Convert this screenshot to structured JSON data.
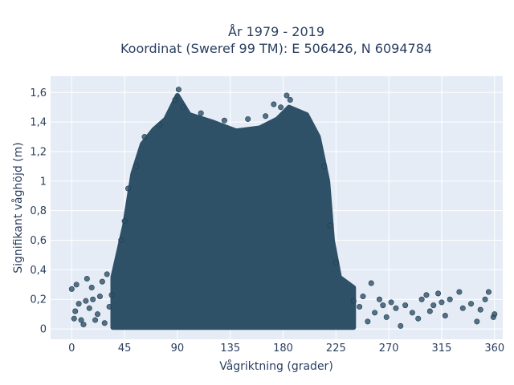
{
  "chart_data": {
    "type": "scatter",
    "title": "År 1979 - 2019",
    "subtitle": "Koordinat (Sweref 99 TM): E 506426, N 6094784",
    "xlabel": "Vågriktning (grader)",
    "ylabel": "Signifikant våghöjd (m)",
    "xlim": [
      -18,
      367
    ],
    "ylim": [
      -0.07,
      1.71
    ],
    "xticks": [
      0,
      45,
      90,
      135,
      180,
      225,
      270,
      315,
      360
    ],
    "xtick_labels": [
      "0",
      "45",
      "90",
      "135",
      "180",
      "225",
      "270",
      "315",
      "360"
    ],
    "yticks": [
      0,
      0.2,
      0.4,
      0.6,
      0.8,
      1,
      1.2,
      1.4,
      1.6
    ],
    "ytick_labels": [
      "0",
      "0,2",
      "0,4",
      "0,6",
      "0,8",
      "1",
      "1,2",
      "1,4",
      "1,6"
    ],
    "grid": true,
    "envelope": [
      [
        35,
        0.35
      ],
      [
        45,
        0.7
      ],
      [
        52,
        1.05
      ],
      [
        60,
        1.25
      ],
      [
        70,
        1.35
      ],
      [
        80,
        1.42
      ],
      [
        90,
        1.58
      ],
      [
        100,
        1.45
      ],
      [
        120,
        1.4
      ],
      [
        140,
        1.34
      ],
      [
        160,
        1.36
      ],
      [
        175,
        1.42
      ],
      [
        185,
        1.5
      ],
      [
        200,
        1.45
      ],
      [
        210,
        1.3
      ],
      [
        218,
        1.0
      ],
      [
        222,
        0.6
      ],
      [
        228,
        0.35
      ],
      [
        240,
        0.28
      ]
    ],
    "points": [
      [
        0,
        0.27
      ],
      [
        2,
        0.07
      ],
      [
        3,
        0.12
      ],
      [
        4,
        0.3
      ],
      [
        6,
        0.17
      ],
      [
        8,
        0.06
      ],
      [
        10,
        0.03
      ],
      [
        12,
        0.19
      ],
      [
        13,
        0.34
      ],
      [
        15,
        0.14
      ],
      [
        17,
        0.28
      ],
      [
        18,
        0.2
      ],
      [
        20,
        0.06
      ],
      [
        22,
        0.1
      ],
      [
        24,
        0.22
      ],
      [
        26,
        0.32
      ],
      [
        28,
        0.04
      ],
      [
        30,
        0.37
      ],
      [
        32,
        0.15
      ],
      [
        34,
        0.23
      ],
      [
        240,
        0.19
      ],
      [
        245,
        0.15
      ],
      [
        248,
        0.22
      ],
      [
        252,
        0.05
      ],
      [
        255,
        0.31
      ],
      [
        258,
        0.11
      ],
      [
        262,
        0.2
      ],
      [
        265,
        0.16
      ],
      [
        268,
        0.08
      ],
      [
        272,
        0.18
      ],
      [
        276,
        0.14
      ],
      [
        280,
        0.02
      ],
      [
        284,
        0.16
      ],
      [
        290,
        0.11
      ],
      [
        295,
        0.07
      ],
      [
        298,
        0.2
      ],
      [
        302,
        0.23
      ],
      [
        305,
        0.12
      ],
      [
        308,
        0.16
      ],
      [
        312,
        0.24
      ],
      [
        315,
        0.18
      ],
      [
        318,
        0.09
      ],
      [
        322,
        0.2
      ],
      [
        330,
        0.25
      ],
      [
        333,
        0.14
      ],
      [
        340,
        0.17
      ],
      [
        345,
        0.05
      ],
      [
        348,
        0.13
      ],
      [
        352,
        0.2
      ],
      [
        355,
        0.25
      ],
      [
        359,
        0.08
      ],
      [
        360,
        0.1
      ],
      [
        91,
        1.62
      ],
      [
        88,
        1.55
      ],
      [
        95,
        1.5
      ],
      [
        183,
        1.58
      ],
      [
        178,
        1.5
      ],
      [
        172,
        1.52
      ],
      [
        186,
        1.55
      ],
      [
        165,
        1.44
      ],
      [
        150,
        1.42
      ],
      [
        130,
        1.41
      ],
      [
        110,
        1.46
      ],
      [
        75,
        1.38
      ],
      [
        62,
        1.3
      ],
      [
        55,
        1.1
      ],
      [
        48,
        0.95
      ],
      [
        45,
        0.73
      ],
      [
        42,
        0.6
      ],
      [
        215,
        1.1
      ],
      [
        220,
        0.7
      ],
      [
        225,
        0.45
      ]
    ],
    "marker_color": "#2f5168"
  }
}
